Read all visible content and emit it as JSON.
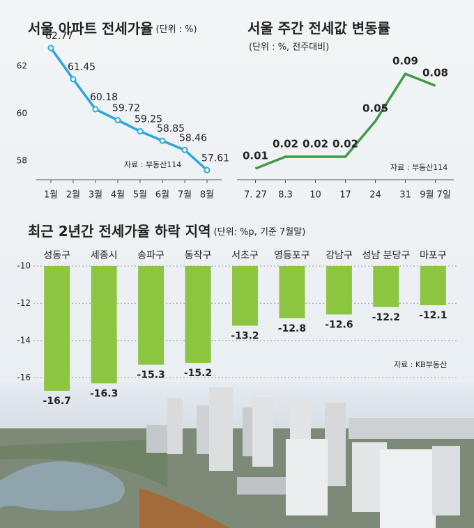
{
  "chart_data": [
    {
      "type": "line",
      "title": "서울 아파트 전세가율",
      "subtitle": "(단위 : %)",
      "source": "자료 : 부동산114",
      "categories": [
        "1월",
        "2월",
        "3월",
        "4월",
        "5월",
        "6월",
        "7월",
        "8월"
      ],
      "values": [
        62.77,
        61.45,
        60.18,
        59.72,
        59.25,
        58.85,
        58.46,
        57.61
      ],
      "color": "#2aa7dc",
      "markers": true,
      "ylim": [
        57.5,
        63
      ],
      "yticks": [
        58,
        60,
        62
      ],
      "grid": false
    },
    {
      "type": "line",
      "title": "서울 주간 전세값 변동률",
      "subtitle": "(단위 : %, 전주대비)",
      "source": "자료 : 부동산114",
      "categories": [
        "7. 27",
        "8.3",
        "10",
        "17",
        "24",
        "31",
        "9월 7일"
      ],
      "values": [
        0.01,
        0.02,
        0.02,
        0.02,
        0.05,
        0.09,
        0.08
      ],
      "color": "#3f9a45",
      "markers": false,
      "ylim": [
        0,
        0.1
      ],
      "grid": false
    },
    {
      "type": "bar",
      "title": "최근 2년간 전세가율 하락 지역",
      "subtitle": "(단위: %p, 기준 7월말)",
      "source": "자료 : KB부동산",
      "categories": [
        "성동구",
        "세종시",
        "송파구",
        "동작구",
        "서초구",
        "영등포구",
        "강남구",
        "성남 분당구",
        "마포구"
      ],
      "values": [
        -16.7,
        -16.3,
        -15.3,
        -15.2,
        -13.2,
        -12.8,
        -12.6,
        -12.2,
        -12.1
      ],
      "color": "#8cc540",
      "ylim": [
        -10,
        -17
      ],
      "yticks": [
        -10,
        -12,
        -14,
        -16
      ],
      "grid": true
    }
  ]
}
